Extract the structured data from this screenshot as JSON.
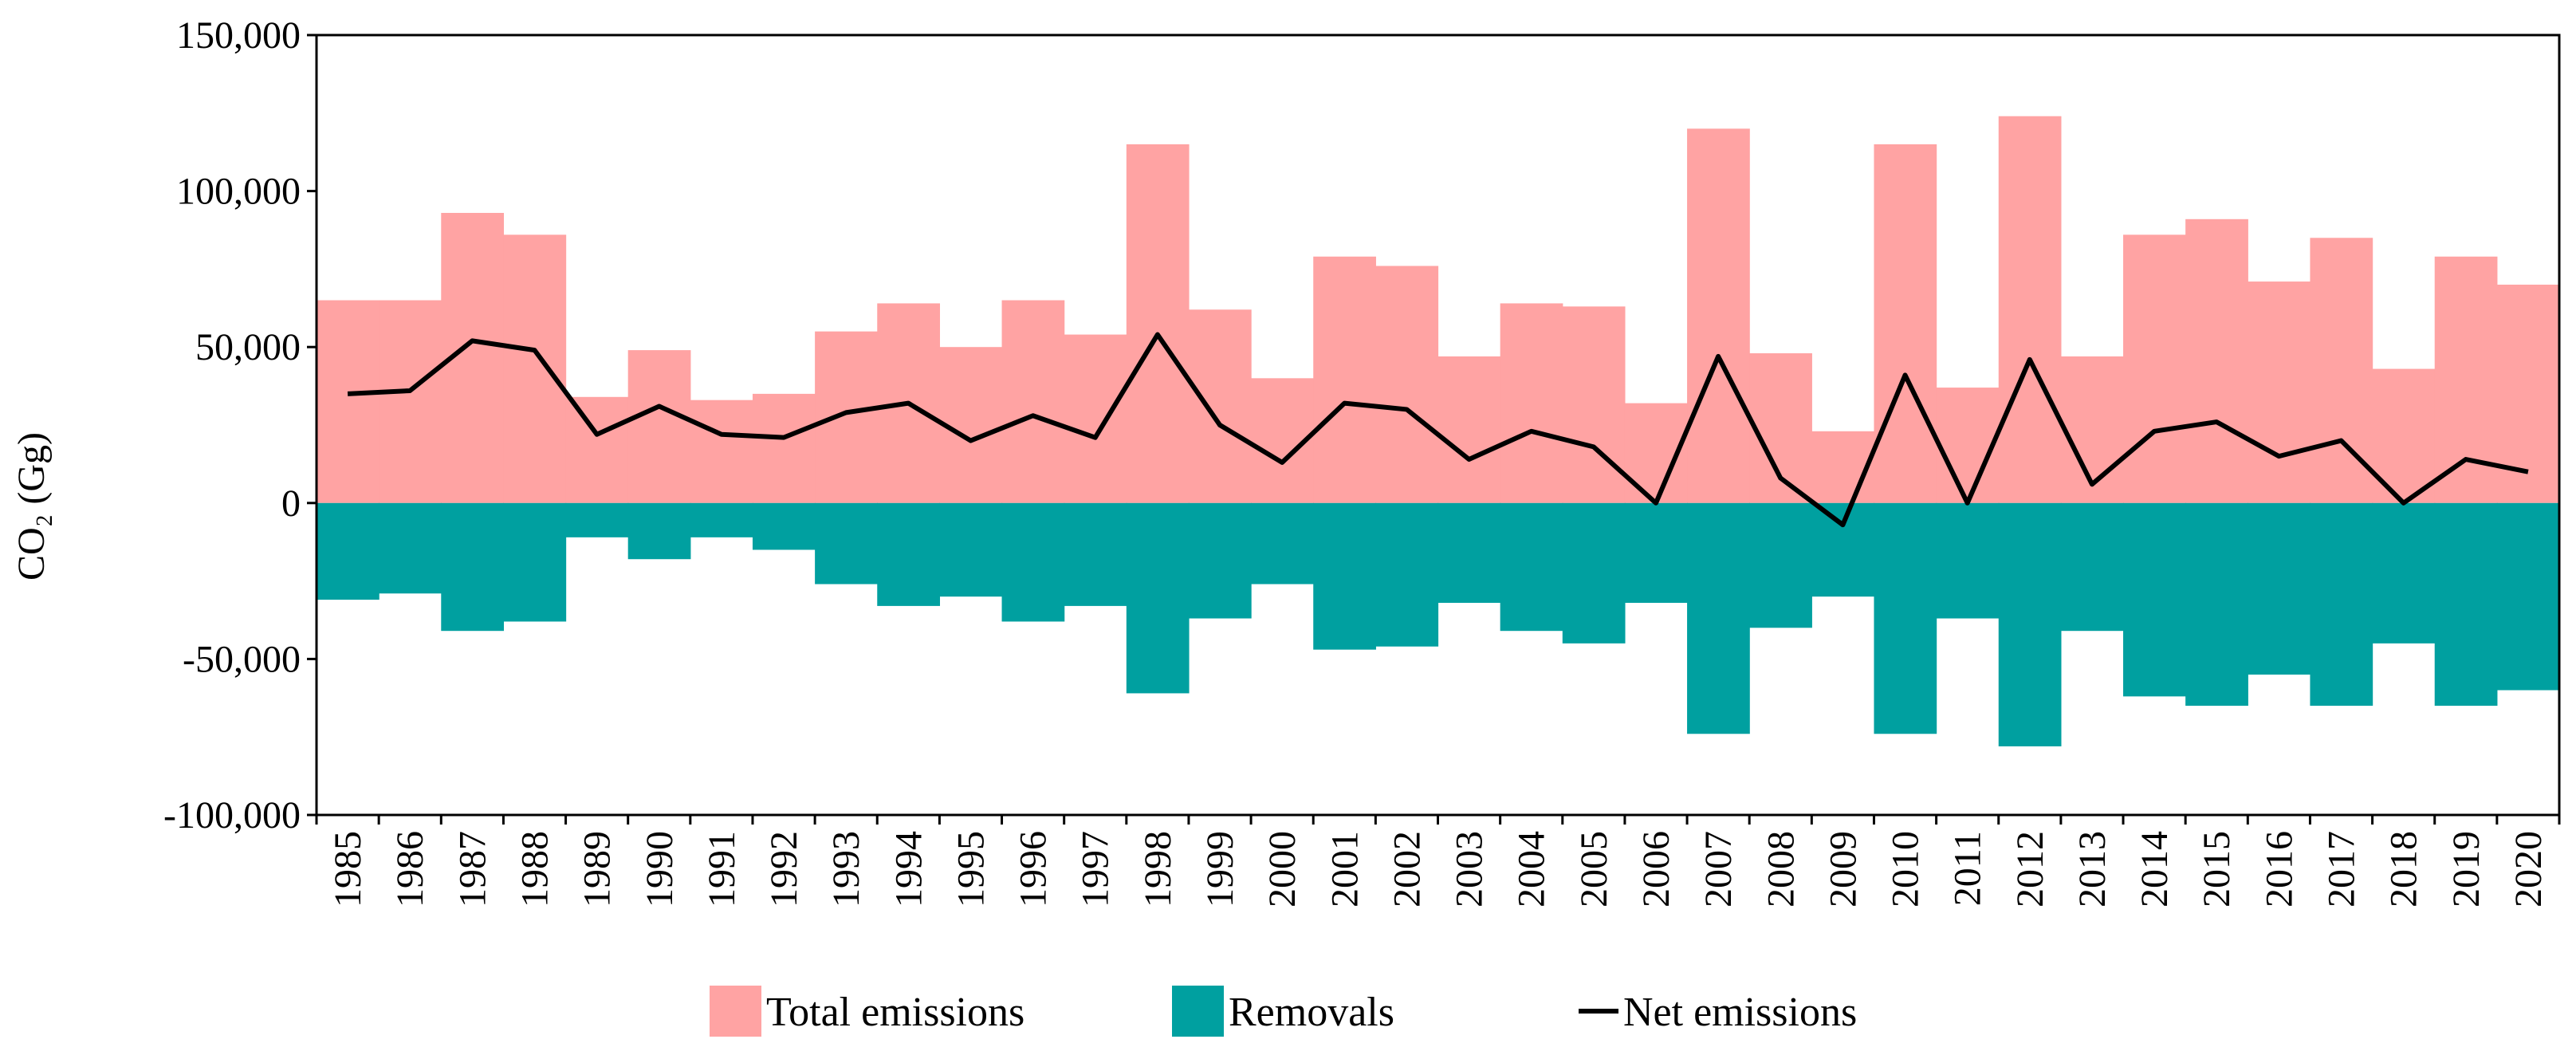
{
  "chart_data": {
    "type": "bar",
    "ylabel": "CO₂ (Gg)",
    "ylim": [
      -100000,
      150000
    ],
    "y_ticks": [
      150000,
      100000,
      50000,
      0,
      -50000,
      -100000
    ],
    "y_tick_labels": [
      "150,000",
      "100,000",
      "50,000",
      "0",
      "-50,000",
      "-100,000"
    ],
    "categories": [
      "1985",
      "1986",
      "1987",
      "1988",
      "1989",
      "1990",
      "1991",
      "1992",
      "1993",
      "1994",
      "1995",
      "1996",
      "1997",
      "1998",
      "1999",
      "2000",
      "2001",
      "2002",
      "2003",
      "2004",
      "2005",
      "2006",
      "2007",
      "2008",
      "2009",
      "2010",
      "2011",
      "2012",
      "2013",
      "2014",
      "2015",
      "2016",
      "2017",
      "2018",
      "2019",
      "2020"
    ],
    "grid": false,
    "legend_position": "bottom",
    "series": [
      {
        "name": "Total emissions",
        "kind": "bar",
        "color": "#ffa3a3",
        "values": [
          65000,
          65000,
          93000,
          86000,
          34000,
          49000,
          33000,
          35000,
          55000,
          64000,
          50000,
          65000,
          54000,
          115000,
          62000,
          40000,
          79000,
          76000,
          47000,
          64000,
          63000,
          32000,
          120000,
          48000,
          23000,
          115000,
          37000,
          124000,
          47000,
          86000,
          91000,
          71000,
          85000,
          43000,
          79000,
          70000
        ]
      },
      {
        "name": "Removals",
        "kind": "bar",
        "color": "#00a0a0",
        "values": [
          -31000,
          -29000,
          -41000,
          -38000,
          -11000,
          -18000,
          -11000,
          -15000,
          -26000,
          -33000,
          -30000,
          -38000,
          -33000,
          -61000,
          -37000,
          -26000,
          -47000,
          -46000,
          -32000,
          -41000,
          -45000,
          -32000,
          -74000,
          -40000,
          -30000,
          -74000,
          -37000,
          -78000,
          -41000,
          -62000,
          -65000,
          -55000,
          -65000,
          -45000,
          -65000,
          -60000
        ]
      },
      {
        "name": "Net emissions",
        "kind": "line",
        "color": "#000000",
        "values": [
          35000,
          36000,
          52000,
          49000,
          22000,
          31000,
          22000,
          21000,
          29000,
          32000,
          20000,
          28000,
          21000,
          54000,
          25000,
          13000,
          32000,
          30000,
          14000,
          23000,
          18000,
          0,
          47000,
          8000,
          -7000,
          41000,
          0,
          46000,
          6000,
          23000,
          26000,
          15000,
          20000,
          0,
          14000,
          10000
        ]
      }
    ]
  }
}
